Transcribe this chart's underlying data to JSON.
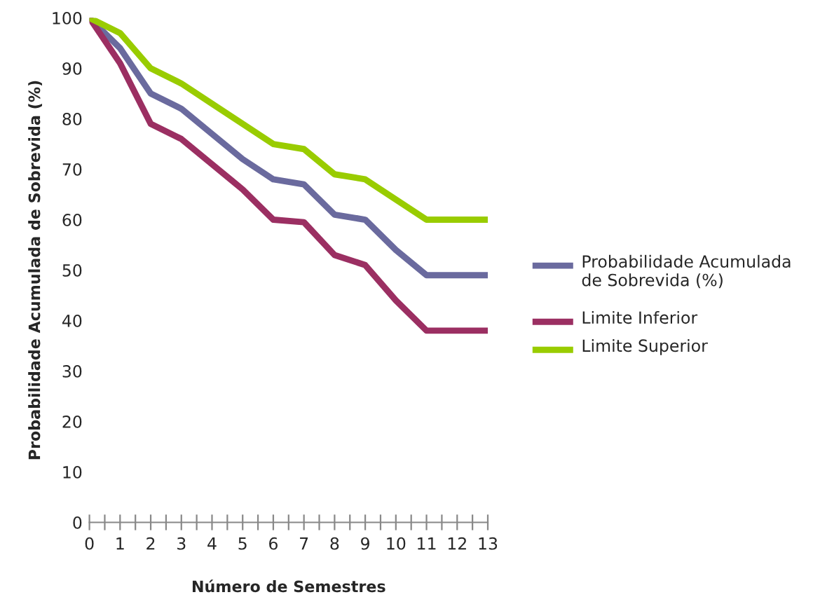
{
  "chart_data": {
    "type": "line",
    "xlabel": "Número de Semestres",
    "ylabel": "Probabilidade Acumulada de Sobrevida (%)",
    "x": [
      0,
      1,
      2,
      3,
      4,
      5,
      6,
      7,
      8,
      9,
      10,
      11,
      12,
      13
    ],
    "series": [
      {
        "name": "Probabilidade Acumulada de Sobrevida (%)",
        "color": "#6a6a9e",
        "values": [
          100,
          94,
          85,
          82,
          77,
          72,
          68,
          67,
          61,
          60,
          54,
          49,
          49,
          49
        ]
      },
      {
        "name": "Limite Inferior",
        "color": "#9b2f62",
        "values": [
          100,
          91,
          79,
          76,
          71,
          66,
          60,
          59.5,
          53,
          51,
          44,
          38,
          38,
          38
        ]
      },
      {
        "name": "Limite Superior",
        "color": "#99cc00",
        "values": [
          100,
          97,
          90,
          87,
          83,
          79,
          75,
          74,
          69,
          68,
          64,
          60,
          60,
          60
        ]
      }
    ],
    "xlim": [
      0,
      13
    ],
    "ylim": [
      0,
      100
    ],
    "xticks": [
      0,
      {
        "value": 0.5,
        "label": null
      },
      1,
      {
        "value": 1.5,
        "label": null
      },
      2,
      {
        "value": 2.5,
        "label": null
      },
      3,
      {
        "value": 3.5,
        "label": null
      },
      4,
      {
        "value": 4.5,
        "label": null
      },
      5,
      {
        "value": 5.5,
        "label": null
      },
      6,
      {
        "value": 6.5,
        "label": null
      },
      7,
      {
        "value": 7.5,
        "label": null
      },
      8,
      {
        "value": 8.5,
        "label": null
      },
      9,
      {
        "value": 9.5,
        "label": null
      },
      10,
      {
        "value": 10.5,
        "label": null
      },
      11,
      {
        "value": 11.5,
        "label": null
      },
      12,
      {
        "value": 12.5,
        "label": null
      },
      13
    ],
    "yticks": [
      0,
      10,
      20,
      30,
      40,
      50,
      60,
      70,
      80,
      90,
      100
    ],
    "grid": false,
    "legend": "right",
    "marker": "none",
    "line_style": "solid"
  }
}
